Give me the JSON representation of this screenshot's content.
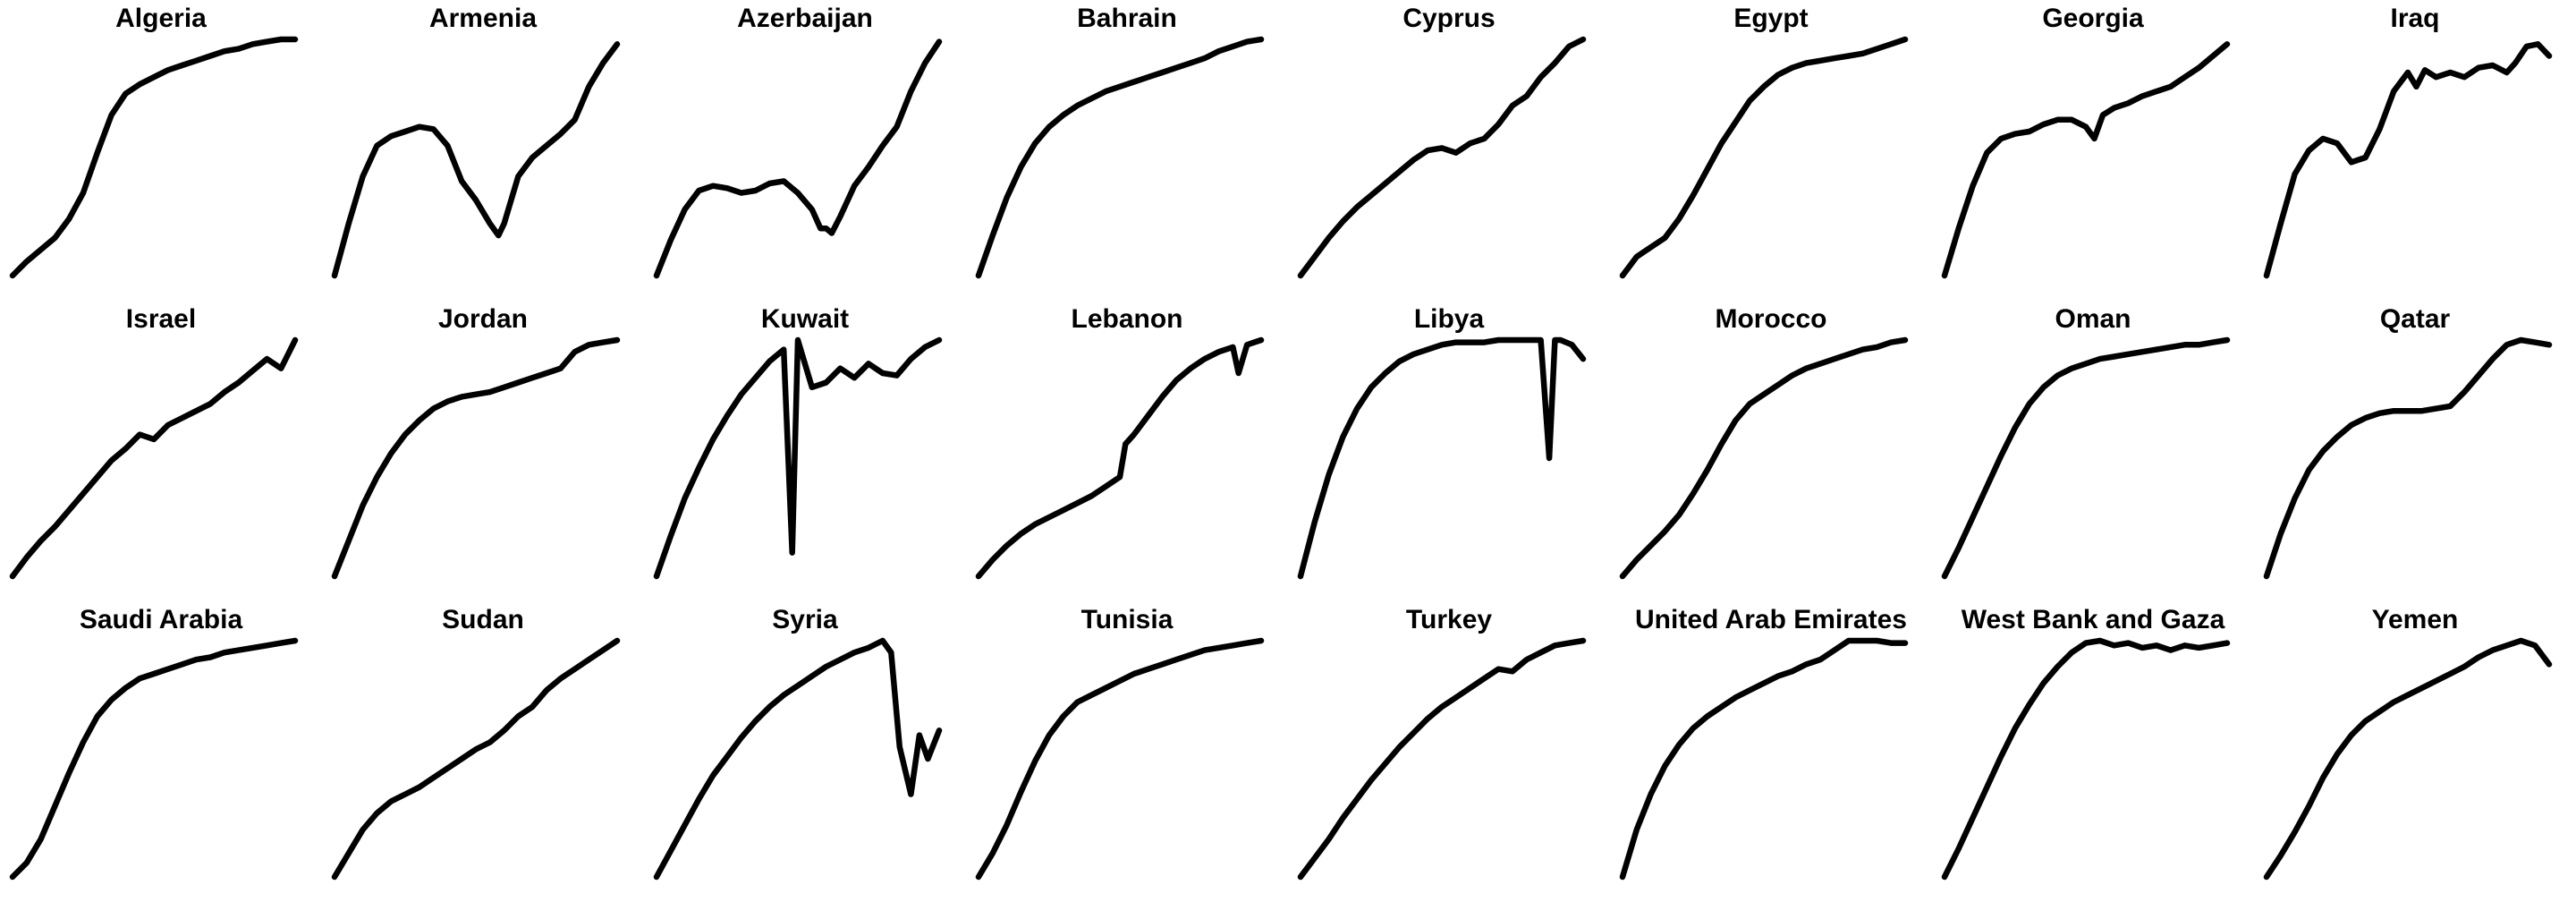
{
  "chart_data": {
    "type": "line",
    "layout": "small-multiples",
    "panel_grid": {
      "rows": 3,
      "columns": 8
    },
    "axes_visible": false,
    "grid": false,
    "legend": "none",
    "scale": "each panel scaled independently; values normalized 0-1",
    "panels": [
      {
        "title": "Algeria",
        "x": [
          0,
          0.05,
          0.1,
          0.15,
          0.2,
          0.25,
          0.3,
          0.35,
          0.4,
          0.45,
          0.5,
          0.55,
          0.6,
          0.65,
          0.7,
          0.75,
          0.8,
          0.85,
          0.9,
          0.95,
          1
        ],
        "values": [
          0,
          0.06,
          0.11,
          0.16,
          0.24,
          0.35,
          0.52,
          0.68,
          0.77,
          0.81,
          0.84,
          0.87,
          0.89,
          0.91,
          0.93,
          0.95,
          0.96,
          0.98,
          0.99,
          1,
          1
        ]
      },
      {
        "title": "Armenia",
        "x": [
          0,
          0.05,
          0.1,
          0.15,
          0.2,
          0.25,
          0.3,
          0.35,
          0.4,
          0.45,
          0.5,
          0.55,
          0.58,
          0.6,
          0.62,
          0.65,
          0.7,
          0.75,
          0.8,
          0.85,
          0.9,
          0.95,
          1
        ],
        "values": [
          0,
          0.22,
          0.42,
          0.55,
          0.59,
          0.61,
          0.63,
          0.62,
          0.55,
          0.4,
          0.32,
          0.22,
          0.17,
          0.22,
          0.3,
          0.42,
          0.5,
          0.55,
          0.6,
          0.66,
          0.8,
          0.9,
          0.98
        ]
      },
      {
        "title": "Azerbaijan",
        "x": [
          0,
          0.05,
          0.1,
          0.15,
          0.2,
          0.25,
          0.3,
          0.35,
          0.4,
          0.45,
          0.5,
          0.55,
          0.58,
          0.6,
          0.62,
          0.65,
          0.7,
          0.75,
          0.8,
          0.85,
          0.9,
          0.95,
          1
        ],
        "values": [
          0,
          0.15,
          0.28,
          0.36,
          0.38,
          0.37,
          0.35,
          0.36,
          0.39,
          0.4,
          0.35,
          0.28,
          0.2,
          0.2,
          0.18,
          0.25,
          0.38,
          0.46,
          0.55,
          0.63,
          0.78,
          0.9,
          0.99
        ]
      },
      {
        "title": "Bahrain",
        "x": [
          0,
          0.05,
          0.1,
          0.15,
          0.2,
          0.25,
          0.3,
          0.35,
          0.4,
          0.45,
          0.5,
          0.55,
          0.6,
          0.65,
          0.7,
          0.75,
          0.8,
          0.85,
          0.9,
          0.95,
          1
        ],
        "values": [
          0,
          0.17,
          0.33,
          0.46,
          0.56,
          0.63,
          0.68,
          0.72,
          0.75,
          0.78,
          0.8,
          0.82,
          0.84,
          0.86,
          0.88,
          0.9,
          0.92,
          0.95,
          0.97,
          0.99,
          1
        ]
      },
      {
        "title": "Cyprus",
        "x": [
          0,
          0.05,
          0.1,
          0.15,
          0.2,
          0.25,
          0.3,
          0.35,
          0.4,
          0.45,
          0.5,
          0.55,
          0.6,
          0.65,
          0.7,
          0.75,
          0.8,
          0.85,
          0.9,
          0.95,
          1
        ],
        "values": [
          0,
          0.08,
          0.16,
          0.23,
          0.29,
          0.34,
          0.39,
          0.44,
          0.49,
          0.53,
          0.54,
          0.52,
          0.56,
          0.58,
          0.64,
          0.72,
          0.76,
          0.84,
          0.9,
          0.97,
          1
        ]
      },
      {
        "title": "Egypt",
        "x": [
          0,
          0.05,
          0.1,
          0.15,
          0.2,
          0.25,
          0.3,
          0.35,
          0.4,
          0.45,
          0.5,
          0.55,
          0.6,
          0.65,
          0.7,
          0.75,
          0.8,
          0.85,
          0.9,
          0.95,
          1
        ],
        "values": [
          0,
          0.08,
          0.12,
          0.16,
          0.24,
          0.34,
          0.45,
          0.56,
          0.65,
          0.74,
          0.8,
          0.85,
          0.88,
          0.9,
          0.91,
          0.92,
          0.93,
          0.94,
          0.96,
          0.98,
          1
        ]
      },
      {
        "title": "Georgia",
        "x": [
          0,
          0.05,
          0.1,
          0.15,
          0.2,
          0.25,
          0.3,
          0.35,
          0.4,
          0.45,
          0.5,
          0.53,
          0.56,
          0.6,
          0.65,
          0.7,
          0.75,
          0.8,
          0.85,
          0.9,
          0.95,
          1
        ],
        "values": [
          0,
          0.2,
          0.38,
          0.52,
          0.58,
          0.6,
          0.61,
          0.64,
          0.66,
          0.66,
          0.63,
          0.58,
          0.68,
          0.71,
          0.73,
          0.76,
          0.78,
          0.8,
          0.84,
          0.88,
          0.93,
          0.98
        ]
      },
      {
        "title": "Iraq",
        "x": [
          0,
          0.05,
          0.1,
          0.15,
          0.2,
          0.25,
          0.3,
          0.35,
          0.4,
          0.45,
          0.5,
          0.53,
          0.56,
          0.6,
          0.65,
          0.7,
          0.75,
          0.8,
          0.85,
          0.88,
          0.92,
          0.96,
          1
        ],
        "values": [
          0,
          0.22,
          0.43,
          0.53,
          0.58,
          0.56,
          0.48,
          0.5,
          0.62,
          0.78,
          0.86,
          0.8,
          0.87,
          0.84,
          0.86,
          0.84,
          0.88,
          0.89,
          0.86,
          0.9,
          0.97,
          0.98,
          0.93
        ]
      },
      {
        "title": "Israel",
        "x": [
          0,
          0.05,
          0.1,
          0.15,
          0.2,
          0.25,
          0.3,
          0.35,
          0.4,
          0.45,
          0.5,
          0.55,
          0.6,
          0.65,
          0.7,
          0.75,
          0.8,
          0.85,
          0.9,
          0.95,
          1
        ],
        "values": [
          0,
          0.08,
          0.15,
          0.21,
          0.28,
          0.35,
          0.42,
          0.49,
          0.54,
          0.6,
          0.58,
          0.64,
          0.67,
          0.7,
          0.73,
          0.78,
          0.82,
          0.87,
          0.92,
          0.88,
          1
        ]
      },
      {
        "title": "Jordan",
        "x": [
          0,
          0.05,
          0.1,
          0.15,
          0.2,
          0.25,
          0.3,
          0.35,
          0.4,
          0.45,
          0.5,
          0.55,
          0.6,
          0.65,
          0.7,
          0.75,
          0.8,
          0.85,
          0.9,
          0.95,
          1
        ],
        "values": [
          0,
          0.15,
          0.3,
          0.42,
          0.52,
          0.6,
          0.66,
          0.71,
          0.74,
          0.76,
          0.77,
          0.78,
          0.8,
          0.82,
          0.84,
          0.86,
          0.88,
          0.95,
          0.98,
          0.99,
          1
        ]
      },
      {
        "title": "Kuwait",
        "x": [
          0,
          0.05,
          0.1,
          0.15,
          0.2,
          0.25,
          0.3,
          0.35,
          0.4,
          0.45,
          0.48,
          0.5,
          0.52,
          0.55,
          0.6,
          0.65,
          0.7,
          0.75,
          0.8,
          0.85,
          0.9,
          0.95,
          1
        ],
        "values": [
          0,
          0.17,
          0.33,
          0.46,
          0.58,
          0.68,
          0.77,
          0.84,
          0.91,
          0.96,
          0.1,
          1,
          0.92,
          0.8,
          0.82,
          0.88,
          0.84,
          0.9,
          0.86,
          0.85,
          0.92,
          0.97,
          1
        ]
      },
      {
        "title": "Lebanon",
        "x": [
          0,
          0.05,
          0.1,
          0.15,
          0.2,
          0.25,
          0.3,
          0.35,
          0.4,
          0.45,
          0.5,
          0.52,
          0.55,
          0.6,
          0.65,
          0.7,
          0.75,
          0.8,
          0.85,
          0.9,
          0.92,
          0.95,
          1
        ],
        "values": [
          0,
          0.07,
          0.13,
          0.18,
          0.22,
          0.25,
          0.28,
          0.31,
          0.34,
          0.38,
          0.42,
          0.56,
          0.6,
          0.68,
          0.76,
          0.83,
          0.88,
          0.92,
          0.95,
          0.97,
          0.86,
          0.98,
          1
        ]
      },
      {
        "title": "Libya",
        "x": [
          0,
          0.05,
          0.1,
          0.15,
          0.2,
          0.25,
          0.3,
          0.35,
          0.4,
          0.45,
          0.5,
          0.55,
          0.6,
          0.65,
          0.7,
          0.75,
          0.8,
          0.85,
          0.88,
          0.9,
          0.92,
          0.96,
          1
        ],
        "values": [
          0,
          0.23,
          0.43,
          0.59,
          0.71,
          0.8,
          0.86,
          0.91,
          0.94,
          0.96,
          0.98,
          0.99,
          0.99,
          0.99,
          1,
          1,
          1,
          1,
          0.5,
          1,
          1,
          0.98,
          0.92
        ]
      },
      {
        "title": "Morocco",
        "x": [
          0,
          0.05,
          0.1,
          0.15,
          0.2,
          0.25,
          0.3,
          0.35,
          0.4,
          0.45,
          0.5,
          0.55,
          0.6,
          0.65,
          0.7,
          0.75,
          0.8,
          0.85,
          0.9,
          0.95,
          1
        ],
        "values": [
          0,
          0.07,
          0.13,
          0.19,
          0.26,
          0.35,
          0.45,
          0.56,
          0.66,
          0.73,
          0.77,
          0.81,
          0.85,
          0.88,
          0.9,
          0.92,
          0.94,
          0.96,
          0.97,
          0.99,
          1
        ]
      },
      {
        "title": "Oman",
        "x": [
          0,
          0.05,
          0.1,
          0.15,
          0.2,
          0.25,
          0.3,
          0.35,
          0.4,
          0.45,
          0.5,
          0.55,
          0.6,
          0.65,
          0.7,
          0.75,
          0.8,
          0.85,
          0.9,
          0.95,
          1
        ],
        "values": [
          0,
          0.12,
          0.25,
          0.38,
          0.51,
          0.63,
          0.73,
          0.8,
          0.85,
          0.88,
          0.9,
          0.92,
          0.93,
          0.94,
          0.95,
          0.96,
          0.97,
          0.98,
          0.98,
          0.99,
          1
        ]
      },
      {
        "title": "Qatar",
        "x": [
          0,
          0.05,
          0.1,
          0.15,
          0.2,
          0.25,
          0.3,
          0.35,
          0.4,
          0.45,
          0.5,
          0.55,
          0.6,
          0.65,
          0.7,
          0.75,
          0.8,
          0.85,
          0.9,
          0.95,
          1
        ],
        "values": [
          0,
          0.18,
          0.33,
          0.45,
          0.53,
          0.59,
          0.64,
          0.67,
          0.69,
          0.7,
          0.7,
          0.7,
          0.71,
          0.72,
          0.78,
          0.85,
          0.92,
          0.98,
          1,
          0.99,
          0.98
        ]
      },
      {
        "title": "Saudi Arabia",
        "x": [
          0,
          0.05,
          0.1,
          0.15,
          0.2,
          0.25,
          0.3,
          0.35,
          0.4,
          0.45,
          0.5,
          0.55,
          0.6,
          0.65,
          0.7,
          0.75,
          0.8,
          0.85,
          0.9,
          0.95,
          1
        ],
        "values": [
          0,
          0.06,
          0.16,
          0.3,
          0.44,
          0.57,
          0.68,
          0.75,
          0.8,
          0.84,
          0.86,
          0.88,
          0.9,
          0.92,
          0.93,
          0.95,
          0.96,
          0.97,
          0.98,
          0.99,
          1
        ]
      },
      {
        "title": "Sudan",
        "x": [
          0,
          0.05,
          0.1,
          0.15,
          0.2,
          0.25,
          0.3,
          0.35,
          0.4,
          0.45,
          0.5,
          0.55,
          0.6,
          0.65,
          0.7,
          0.75,
          0.8,
          0.85,
          0.9,
          0.95,
          1
        ],
        "values": [
          0,
          0.1,
          0.2,
          0.27,
          0.32,
          0.35,
          0.38,
          0.42,
          0.46,
          0.5,
          0.54,
          0.57,
          0.62,
          0.68,
          0.72,
          0.79,
          0.84,
          0.88,
          0.92,
          0.96,
          1
        ]
      },
      {
        "title": "Syria",
        "x": [
          0,
          0.05,
          0.1,
          0.15,
          0.2,
          0.25,
          0.3,
          0.35,
          0.4,
          0.45,
          0.5,
          0.55,
          0.6,
          0.65,
          0.7,
          0.75,
          0.8,
          0.83,
          0.86,
          0.9,
          0.93,
          0.96,
          1
        ],
        "values": [
          0,
          0.11,
          0.22,
          0.33,
          0.43,
          0.51,
          0.59,
          0.66,
          0.72,
          0.77,
          0.81,
          0.85,
          0.89,
          0.92,
          0.95,
          0.97,
          1,
          0.95,
          0.55,
          0.35,
          0.6,
          0.5,
          0.62
        ]
      },
      {
        "title": "Tunisia",
        "x": [
          0,
          0.05,
          0.1,
          0.15,
          0.2,
          0.25,
          0.3,
          0.35,
          0.4,
          0.45,
          0.5,
          0.55,
          0.6,
          0.65,
          0.7,
          0.75,
          0.8,
          0.85,
          0.9,
          0.95,
          1
        ],
        "values": [
          0,
          0.1,
          0.22,
          0.36,
          0.49,
          0.6,
          0.68,
          0.74,
          0.77,
          0.8,
          0.83,
          0.86,
          0.88,
          0.9,
          0.92,
          0.94,
          0.96,
          0.97,
          0.98,
          0.99,
          1
        ]
      },
      {
        "title": "Turkey",
        "x": [
          0,
          0.05,
          0.1,
          0.15,
          0.2,
          0.25,
          0.3,
          0.35,
          0.4,
          0.45,
          0.5,
          0.55,
          0.6,
          0.65,
          0.7,
          0.75,
          0.8,
          0.85,
          0.9,
          0.95,
          1
        ],
        "values": [
          0,
          0.08,
          0.16,
          0.25,
          0.33,
          0.41,
          0.48,
          0.55,
          0.61,
          0.67,
          0.72,
          0.76,
          0.8,
          0.84,
          0.88,
          0.87,
          0.92,
          0.95,
          0.98,
          0.99,
          1
        ]
      },
      {
        "title": "United Arab Emirates",
        "x": [
          0,
          0.05,
          0.1,
          0.15,
          0.2,
          0.25,
          0.3,
          0.35,
          0.4,
          0.45,
          0.5,
          0.55,
          0.6,
          0.65,
          0.7,
          0.75,
          0.8,
          0.85,
          0.9,
          0.95,
          1
        ],
        "values": [
          0,
          0.2,
          0.35,
          0.47,
          0.56,
          0.63,
          0.68,
          0.72,
          0.76,
          0.79,
          0.82,
          0.85,
          0.87,
          0.9,
          0.92,
          0.96,
          1,
          1,
          1,
          0.99,
          0.99
        ]
      },
      {
        "title": "West Bank and Gaza",
        "x": [
          0,
          0.05,
          0.1,
          0.15,
          0.2,
          0.25,
          0.3,
          0.35,
          0.4,
          0.45,
          0.5,
          0.55,
          0.6,
          0.65,
          0.7,
          0.75,
          0.8,
          0.85,
          0.9,
          0.95,
          1
        ],
        "values": [
          0,
          0.12,
          0.25,
          0.38,
          0.51,
          0.63,
          0.73,
          0.82,
          0.89,
          0.95,
          0.99,
          1,
          0.98,
          0.99,
          0.97,
          0.98,
          0.96,
          0.98,
          0.97,
          0.98,
          0.99
        ]
      },
      {
        "title": "Yemen",
        "x": [
          0,
          0.05,
          0.1,
          0.15,
          0.2,
          0.25,
          0.3,
          0.35,
          0.4,
          0.45,
          0.5,
          0.55,
          0.6,
          0.65,
          0.7,
          0.75,
          0.8,
          0.85,
          0.9,
          0.95,
          1
        ],
        "values": [
          0,
          0.09,
          0.19,
          0.3,
          0.42,
          0.52,
          0.6,
          0.66,
          0.7,
          0.74,
          0.77,
          0.8,
          0.83,
          0.86,
          0.89,
          0.93,
          0.96,
          0.98,
          1,
          0.98,
          0.9
        ]
      }
    ]
  }
}
